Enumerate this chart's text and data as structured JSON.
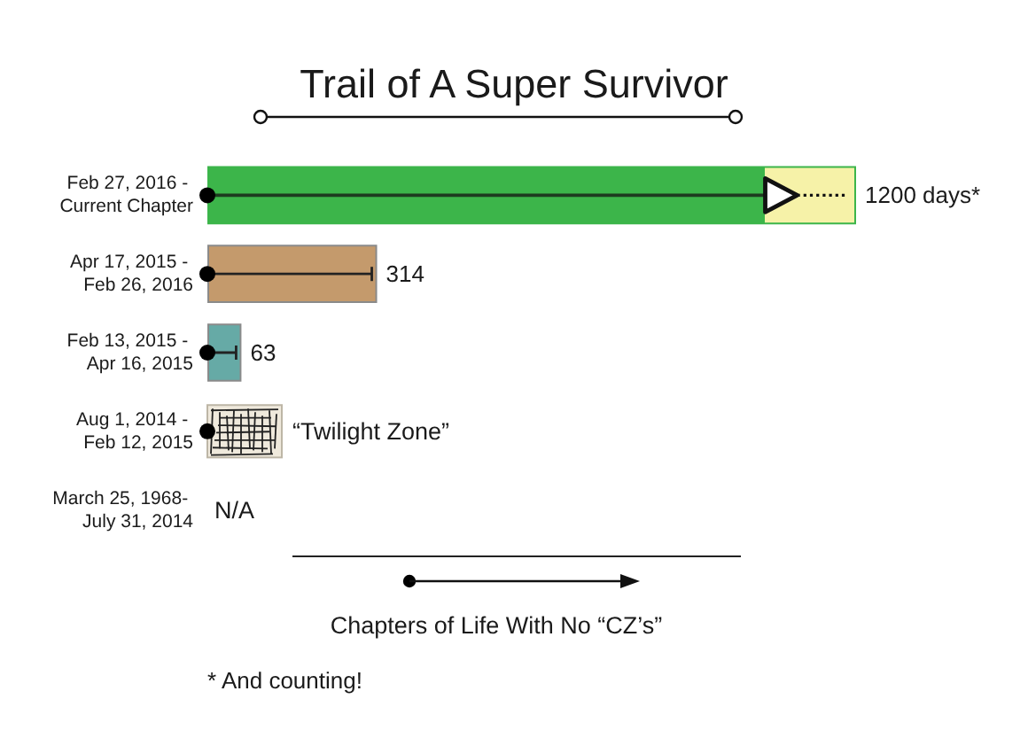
{
  "chart_data": {
    "type": "bar",
    "orientation": "horizontal",
    "title": "Trail of A Super Survivor",
    "xlabel": "Chapters of Life With No “CZ’s”",
    "categories": [
      "Feb 27, 2016 - Current Chapter",
      "Apr 17, 2015 - Feb 26, 2016",
      "Feb 13, 2015 - Apr 16, 2015",
      "Aug 1, 2014 - Feb 12, 2015",
      "March 25, 1968- July 31, 2014"
    ],
    "values": [
      1200,
      314,
      63,
      null,
      null
    ],
    "colors": [
      "#3cb54a",
      "#c49a6c",
      "#66aaa6",
      null,
      null
    ],
    "value_labels": [
      "1200 days*",
      "314",
      "63",
      "“Twilight Zone”",
      "N/A"
    ],
    "annotations": [
      "* And counting!"
    ]
  }
}
